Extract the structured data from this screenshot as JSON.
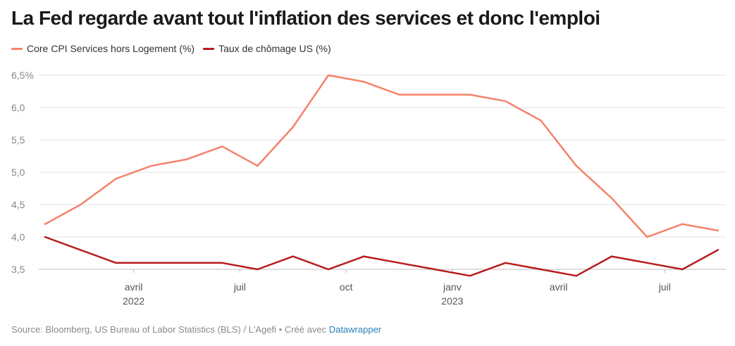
{
  "title": "La Fed regarde avant tout l'inflation des services et donc l'emploi",
  "footer": {
    "text": "Source: Bloomberg, US Bureau of Labor Statistics (BLS) / L'Agefi • Créé avec ",
    "link": "Datawrapper"
  },
  "chart_data": {
    "type": "line",
    "title": "La Fed regarde avant tout l'inflation des services et donc l'emploi",
    "x": [
      "2022-01",
      "2022-02",
      "2022-03",
      "2022-04",
      "2022-05",
      "2022-06",
      "2022-07",
      "2022-08",
      "2022-09",
      "2022-10",
      "2022-11",
      "2022-12",
      "2023-01",
      "2023-02",
      "2023-03",
      "2023-04",
      "2023-05",
      "2023-06",
      "2023-07",
      "2023-08",
      "2023-09"
    ],
    "series": [
      {
        "name": "Core CPI Services hors Logement (%)",
        "color": "#f4826a",
        "values": [
          4.2,
          4.5,
          4.9,
          5.1,
          5.2,
          5.4,
          5.1,
          5.7,
          6.5,
          6.4,
          6.2,
          6.2,
          6.2,
          6.1,
          5.8,
          5.1,
          4.6,
          4.0,
          4.2,
          4.1,
          null
        ]
      },
      {
        "name": "Taux de chômage US (%)",
        "color": "#b71c1c",
        "values": [
          4.0,
          3.8,
          3.6,
          3.6,
          3.6,
          3.6,
          3.5,
          3.7,
          3.5,
          3.7,
          3.6,
          3.5,
          3.4,
          3.6,
          3.5,
          3.4,
          3.7,
          3.6,
          3.5,
          3.8,
          null
        ]
      }
    ],
    "ylim": [
      3.5,
      6.5
    ],
    "yticks": [
      "3,5",
      "4,0",
      "4,5",
      "5,0",
      "5,5",
      "6,0",
      "6,5%"
    ],
    "ytick_values": [
      3.5,
      4.0,
      4.5,
      5.0,
      5.5,
      6.0,
      6.5
    ],
    "xticks": [
      {
        "month": "2022-03",
        "label": "avril",
        "year": "2022"
      },
      {
        "month": "2022-06",
        "label": "juil",
        "year": ""
      },
      {
        "month": "2022-09",
        "label": "oct",
        "year": ""
      },
      {
        "month": "2022-12",
        "label": "janv",
        "year": "2023"
      },
      {
        "month": "2023-03",
        "label": "avril",
        "year": ""
      },
      {
        "month": "2023-06",
        "label": "juil",
        "year": ""
      }
    ],
    "grid": true,
    "legend": "top-left"
  }
}
